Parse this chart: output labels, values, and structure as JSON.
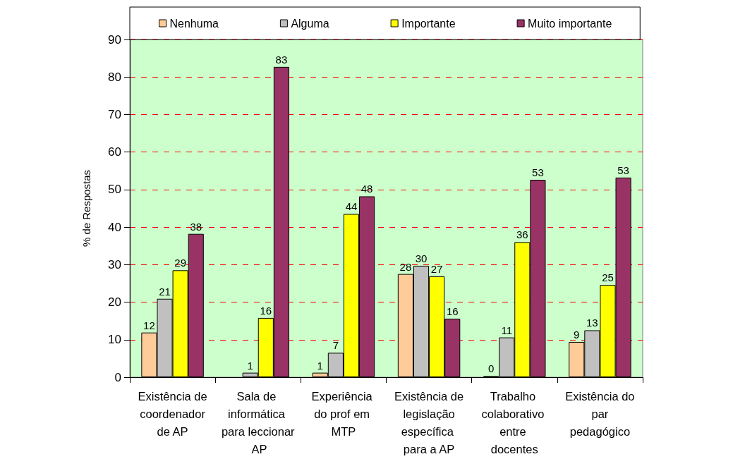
{
  "chart_data": {
    "type": "bar",
    "categories": [
      "Existência de coordenador de AP",
      "Sala de informática para leccionar AP",
      "Experiência do prof em MTP",
      "Existência de legislação específica para a AP",
      "Trabalho colaborativo entre docentes",
      "Existência do par pedagógico"
    ],
    "series": [
      {
        "name": "Nenhuma",
        "color": "#ffcc99",
        "values": [
          11.9,
          null,
          1.2,
          27.5,
          0.3,
          9.4
        ],
        "value_labels": [
          "12",
          null,
          "1",
          "28",
          "0",
          "9"
        ]
      },
      {
        "name": "Alguma",
        "color": "#c0c0c0",
        "values": [
          20.9,
          1.2,
          6.5,
          29.7,
          10.6,
          12.5
        ],
        "value_labels": [
          "21",
          "1",
          "7",
          "30",
          "11",
          "13"
        ]
      },
      {
        "name": "Importante",
        "color": "#ffff00",
        "values": [
          28.5,
          15.8,
          43.5,
          26.9,
          36.0,
          24.6
        ],
        "value_labels": [
          "29",
          "16",
          "44",
          "27",
          "36",
          "25"
        ]
      },
      {
        "name": "Muito importante",
        "color": "#993366",
        "values": [
          38.2,
          82.7,
          48.2,
          15.6,
          52.6,
          53.2
        ],
        "value_labels": [
          "38",
          "83",
          "48",
          "16",
          "53",
          "53"
        ]
      }
    ],
    "ylabel": "% de Respostas",
    "ylim": [
      0,
      90
    ],
    "yticks": [
      0,
      10,
      20,
      30,
      40,
      50,
      60,
      70,
      80,
      90
    ],
    "grid": "y",
    "legend": "top"
  }
}
